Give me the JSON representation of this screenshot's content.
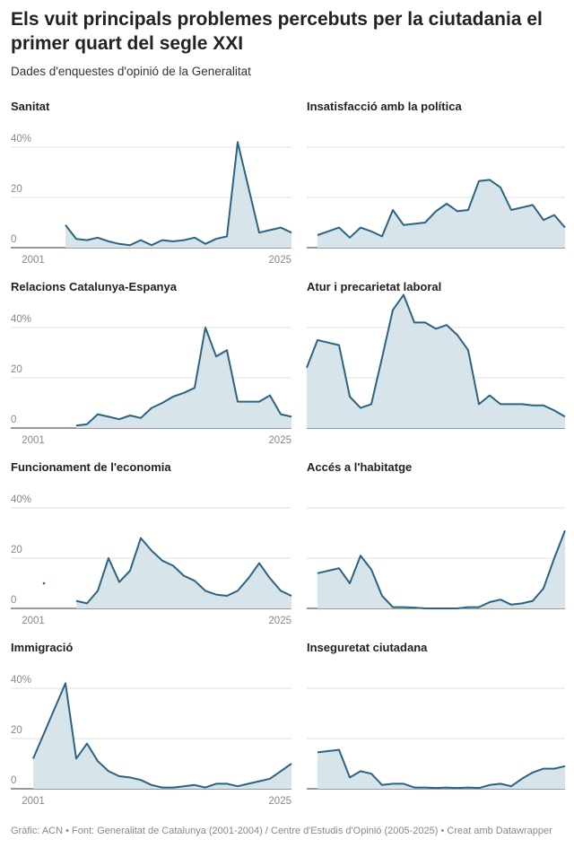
{
  "title": "Els vuit principals problemes percebuts per la ciutadania el primer quart del segle XXI",
  "subtitle": "Dades d'enquestes d'opinió de la Generalitat",
  "footer": "Gràfic: ACN • Font: Generalitat de Catalunya (2001-2004) / Centre d'Estudis d'Opinió (2005-2025) • Creat amb Datawrapper",
  "chart_data": [
    {
      "type": "area",
      "title": "Sanitat",
      "color": "#2b6383",
      "fill": "#d7e4ea",
      "axis_labels": true,
      "x": [
        2001,
        2002,
        2003,
        2004,
        2005,
        2006,
        2007,
        2008,
        2009,
        2010,
        2011,
        2012,
        2013,
        2014,
        2015,
        2016,
        2017,
        2018,
        2019,
        2020,
        2021,
        2022,
        2023,
        2024,
        2025
      ],
      "values": [
        null,
        null,
        null,
        9,
        3.5,
        3,
        4,
        2.5,
        1.5,
        1,
        3,
        1,
        3,
        2.5,
        3,
        4,
        1.5,
        3.5,
        4.5,
        42,
        24,
        6,
        7,
        8,
        6
      ],
      "xlim": [
        2001,
        2025
      ],
      "xticks": [
        2001,
        2025
      ],
      "ylim": [
        0,
        55
      ],
      "yticks": [
        0,
        20,
        {
          "value": 40,
          "label": "40%"
        }
      ]
    },
    {
      "type": "area",
      "title": "Insatisfacció amb la política",
      "color": "#2b6383",
      "fill": "#d7e4ea",
      "axis_labels": false,
      "x": [
        2001,
        2002,
        2003,
        2004,
        2005,
        2006,
        2007,
        2008,
        2009,
        2010,
        2011,
        2012,
        2013,
        2014,
        2015,
        2016,
        2017,
        2018,
        2019,
        2020,
        2021,
        2022,
        2023,
        2024,
        2025
      ],
      "values": [
        null,
        5,
        6.5,
        8,
        4,
        8,
        6.5,
        4.5,
        15,
        9,
        9.5,
        10,
        14.5,
        17.5,
        14.5,
        15,
        26.5,
        27,
        24,
        15,
        16,
        17,
        11,
        13,
        8
      ],
      "xlim": [
        2001,
        2025
      ],
      "ylim": [
        0,
        55
      ],
      "yticks": [
        0,
        20,
        40
      ]
    },
    {
      "type": "area",
      "title": "Relacions Catalunya-Espanya",
      "color": "#2b6383",
      "fill": "#d7e4ea",
      "axis_labels": true,
      "x": [
        2001,
        2002,
        2003,
        2004,
        2005,
        2006,
        2007,
        2008,
        2009,
        2010,
        2011,
        2012,
        2013,
        2014,
        2015,
        2016,
        2017,
        2018,
        2019,
        2020,
        2021,
        2022,
        2023,
        2024,
        2025
      ],
      "values": [
        null,
        null,
        null,
        null,
        1,
        1.5,
        5.5,
        4.5,
        3.5,
        5,
        4,
        8,
        10,
        12.5,
        14,
        16,
        40,
        28.5,
        31,
        10.5,
        10.5,
        10.5,
        13,
        5.5,
        4.5
      ],
      "xlim": [
        2001,
        2025
      ],
      "xticks": [
        2001,
        2025
      ],
      "ylim": [
        0,
        55
      ],
      "yticks": [
        0,
        20,
        {
          "value": 40,
          "label": "40%"
        }
      ]
    },
    {
      "type": "area",
      "title": "Atur i precarietat laboral",
      "color": "#2b6383",
      "fill": "#d7e4ea",
      "axis_labels": false,
      "x": [
        2001,
        2002,
        2003,
        2004,
        2005,
        2006,
        2007,
        2008,
        2009,
        2010,
        2011,
        2012,
        2013,
        2014,
        2015,
        2016,
        2017,
        2018,
        2019,
        2020,
        2021,
        2022,
        2023,
        2024,
        2025
      ],
      "values": [
        24,
        35,
        34,
        33,
        12.5,
        8,
        9.5,
        28,
        47,
        53,
        42,
        42,
        39.5,
        41,
        37,
        31,
        9.5,
        13,
        9.5,
        9.5,
        9.5,
        9,
        9,
        7,
        4.5
      ],
      "xlim": [
        2001,
        2025
      ],
      "ylim": [
        0,
        55
      ],
      "yticks": [
        0,
        20,
        40
      ]
    },
    {
      "type": "area",
      "title": "Funcionament de l'economia",
      "color": "#2b6383",
      "fill": "#d7e4ea",
      "axis_labels": true,
      "x": [
        2001,
        2002,
        2003,
        2004,
        2005,
        2006,
        2007,
        2008,
        2009,
        2010,
        2011,
        2012,
        2013,
        2014,
        2015,
        2016,
        2017,
        2018,
        2019,
        2020,
        2021,
        2022,
        2023,
        2024,
        2025
      ],
      "values": [
        null,
        10,
        null,
        null,
        3,
        2,
        7,
        20,
        10.5,
        15,
        28,
        23,
        19,
        17,
        13,
        11,
        7,
        5.5,
        5,
        7,
        12,
        18,
        12,
        7,
        5
      ],
      "xlim": [
        2001,
        2025
      ],
      "xticks": [
        2001,
        2025
      ],
      "ylim": [
        0,
        55
      ],
      "yticks": [
        0,
        20,
        {
          "value": 40,
          "label": "40%"
        }
      ]
    },
    {
      "type": "area",
      "title": "Accés a l'habitatge",
      "color": "#2b6383",
      "fill": "#d7e4ea",
      "axis_labels": false,
      "x": [
        2001,
        2002,
        2003,
        2004,
        2005,
        2006,
        2007,
        2008,
        2009,
        2010,
        2011,
        2012,
        2013,
        2014,
        2015,
        2016,
        2017,
        2018,
        2019,
        2020,
        2021,
        2022,
        2023,
        2024,
        2025
      ],
      "values": [
        null,
        14,
        15,
        16,
        10,
        21,
        15.5,
        5,
        0.5,
        0.5,
        0.3,
        0,
        0,
        0,
        0,
        0.5,
        0.5,
        2.5,
        3.5,
        1.5,
        2,
        3,
        8,
        20,
        31
      ],
      "xlim": [
        2001,
        2025
      ],
      "ylim": [
        0,
        55
      ],
      "yticks": [
        0,
        20,
        40
      ]
    },
    {
      "type": "area",
      "title": "Immigració",
      "color": "#2b6383",
      "fill": "#d7e4ea",
      "axis_labels": true,
      "x": [
        2001,
        2002,
        2003,
        2004,
        2005,
        2006,
        2007,
        2008,
        2009,
        2010,
        2011,
        2012,
        2013,
        2014,
        2015,
        2016,
        2017,
        2018,
        2019,
        2020,
        2021,
        2022,
        2023,
        2024,
        2025
      ],
      "values": [
        12,
        22,
        32,
        42,
        12,
        18,
        11,
        7,
        5,
        4.5,
        3.5,
        1.5,
        0.5,
        0.5,
        1,
        1.5,
        0.5,
        2,
        2,
        1,
        2,
        3,
        4,
        7,
        10
      ],
      "xlim": [
        2001,
        2025
      ],
      "xticks": [
        2001,
        2025
      ],
      "ylim": [
        0,
        55
      ],
      "yticks": [
        0,
        20,
        {
          "value": 40,
          "label": "40%"
        }
      ]
    },
    {
      "type": "area",
      "title": "Inseguretat ciutadana",
      "color": "#2b6383",
      "fill": "#d7e4ea",
      "axis_labels": false,
      "x": [
        2001,
        2002,
        2003,
        2004,
        2005,
        2006,
        2007,
        2008,
        2009,
        2010,
        2011,
        2012,
        2013,
        2014,
        2015,
        2016,
        2017,
        2018,
        2019,
        2020,
        2021,
        2022,
        2023,
        2024,
        2025
      ],
      "values": [
        null,
        14.5,
        15,
        15.5,
        4.5,
        7,
        6,
        1.5,
        2,
        2,
        0.5,
        0.5,
        0.3,
        0.5,
        0.3,
        0.5,
        0.3,
        1.5,
        2,
        1,
        4,
        6.5,
        8,
        8,
        9
      ],
      "xlim": [
        2001,
        2025
      ],
      "ylim": [
        0,
        55
      ],
      "yticks": [
        0,
        20,
        40
      ]
    }
  ]
}
